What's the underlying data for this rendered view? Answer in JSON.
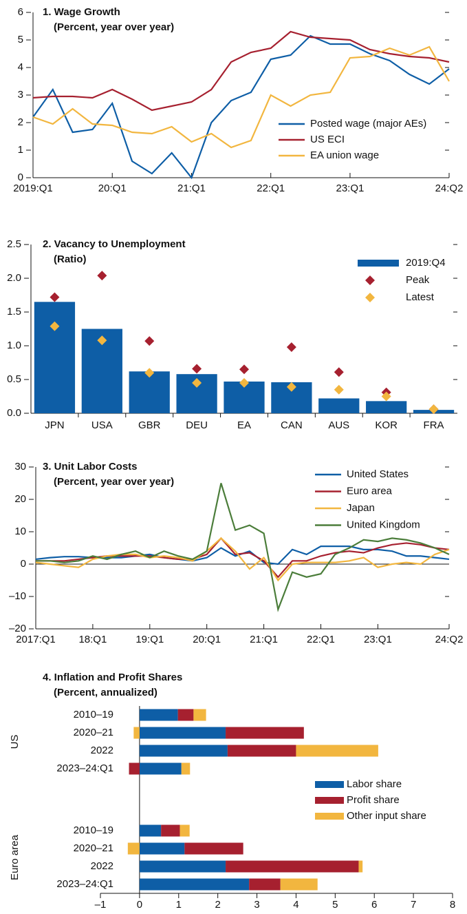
{
  "chart_data": [
    {
      "type": "line",
      "title": "1. Wage Growth",
      "subtitle": "(Percent, year over year)",
      "categories": [
        "2019:Q1",
        null,
        null,
        null,
        "20:Q1",
        null,
        null,
        null,
        "21:Q1",
        null,
        null,
        null,
        "22:Q1",
        null,
        null,
        null,
        "23:Q1",
        null,
        null,
        null,
        null,
        "24:Q2"
      ],
      "series": [
        {
          "name": "Posted wage (major AEs)",
          "color": "#0e5ea6",
          "values": [
            2.2,
            3.2,
            1.65,
            1.75,
            2.7,
            0.6,
            0.15,
            0.9,
            0,
            2.0,
            2.8,
            3.1,
            4.3,
            4.45,
            5.15,
            4.85,
            4.85,
            4.5,
            4.25,
            3.75,
            3.4,
            3.95
          ]
        },
        {
          "name": "US ECI",
          "color": "#a6202f",
          "values": [
            2.9,
            2.95,
            2.95,
            2.9,
            3.2,
            2.85,
            2.45,
            2.6,
            2.75,
            3.2,
            4.2,
            4.55,
            4.7,
            5.3,
            5.1,
            5.05,
            5.0,
            4.65,
            4.5,
            4.4,
            4.35,
            4.2
          ]
        },
        {
          "name": "EA union wage",
          "color": "#f2b63f",
          "values": [
            2.2,
            1.95,
            2.5,
            1.95,
            1.9,
            1.65,
            1.6,
            1.85,
            1.3,
            1.6,
            1.1,
            1.35,
            3.0,
            2.6,
            3.0,
            3.1,
            4.35,
            4.4,
            4.7,
            4.45,
            4.75,
            3.5
          ]
        }
      ],
      "ylim": [
        0,
        6
      ],
      "yticks": [
        0,
        1,
        2,
        3,
        4,
        5,
        6
      ]
    },
    {
      "type": "bar",
      "title": "2. Vacancy to Unemployment",
      "subtitle": "(Ratio)",
      "categories": [
        "JPN",
        "USA",
        "GBR",
        "DEU",
        "EA",
        "CAN",
        "AUS",
        "KOR",
        "FRA"
      ],
      "series": [
        {
          "name": "2019:Q4",
          "type": "bar",
          "color": "#0e5ea6",
          "values": [
            1.65,
            1.25,
            0.62,
            0.58,
            0.47,
            0.46,
            0.22,
            0.18,
            0.05
          ]
        },
        {
          "name": "Peak",
          "type": "scatter",
          "color": "#a6202f",
          "values": [
            1.72,
            2.04,
            1.07,
            0.66,
            0.65,
            0.98,
            0.61,
            0.31,
            0.06
          ]
        },
        {
          "name": "Latest",
          "type": "scatter",
          "color": "#f2b63f",
          "values": [
            1.29,
            1.08,
            0.6,
            0.45,
            0.45,
            0.39,
            0.35,
            0.25,
            0.06
          ]
        }
      ],
      "ylim": [
        0,
        2.5
      ],
      "yticks": [
        {
          "value": 0,
          "label": "0.0"
        },
        0.5,
        {
          "value": 1,
          "label": "1.0"
        },
        1.5,
        {
          "value": 2,
          "label": "2.0"
        },
        2.5
      ]
    },
    {
      "type": "line",
      "title": "3. Unit Labor Costs",
      "subtitle": "(Percent, year over year)",
      "categories": [
        "2017:Q1",
        null,
        null,
        null,
        "18:Q1",
        null,
        null,
        null,
        "19:Q1",
        null,
        null,
        null,
        "20:Q1",
        null,
        null,
        null,
        "21:Q1",
        null,
        null,
        null,
        "22:Q1",
        null,
        null,
        null,
        "23:Q1",
        null,
        null,
        null,
        null,
        "24:Q2"
      ],
      "series": [
        {
          "name": "United States",
          "color": "#0e5ea6",
          "values": [
            1.5,
            2,
            2.3,
            2.3,
            2,
            2,
            2,
            2.5,
            3,
            2,
            1.5,
            1,
            2,
            5,
            2.5,
            4,
            0.5,
            0,
            4.5,
            3,
            5.5,
            5.5,
            5.5,
            4.5,
            4.5,
            4,
            2.5,
            2.5,
            2,
            1.5
          ]
        },
        {
          "name": "Euro area",
          "color": "#a6202f",
          "values": [
            1,
            1,
            1,
            1.5,
            2,
            2.5,
            2.5,
            2.5,
            2.5,
            2,
            1.5,
            1.5,
            3,
            8,
            3,
            3.5,
            1,
            -4,
            1,
            1,
            2.5,
            3.5,
            4,
            3.5,
            5,
            6,
            6.5,
            6,
            5,
            4.5
          ]
        },
        {
          "name": "Japan",
          "color": "#f2b63f",
          "values": [
            0.5,
            0,
            -0.5,
            -1,
            1.5,
            2.5,
            3,
            3,
            2,
            2.5,
            2,
            1,
            4,
            8,
            4,
            -1.5,
            2,
            -5,
            0,
            0.5,
            0.5,
            0.5,
            1,
            2,
            -1,
            0,
            0.5,
            0,
            3,
            4.5
          ]
        },
        {
          "name": "United Kingdom",
          "color": "#4b7d3a",
          "values": [
            1,
            1,
            0.5,
            1,
            2.5,
            1.5,
            3,
            4,
            2,
            4,
            2.5,
            1.5,
            4,
            25,
            10.5,
            12,
            9.5,
            -14,
            -2.5,
            -4,
            -3,
            3,
            5,
            7.5,
            7,
            8,
            7.5,
            6.5,
            5,
            3
          ]
        }
      ],
      "ylim": [
        -20,
        30
      ],
      "yticks": [
        {
          "value": -20,
          "label": "–20"
        },
        {
          "value": -10,
          "label": "–10"
        },
        0,
        10,
        20,
        30
      ]
    },
    {
      "type": "hbar_stacked",
      "title": "4. Inflation and Profit Shares",
      "subtitle": "(Percent, annualized)",
      "groups": [
        {
          "name": "US",
          "categories": [
            "2010–19",
            "2020–21",
            "2022",
            "2023–24:Q1"
          ]
        },
        {
          "name": "Euro area",
          "categories": [
            "2010–19",
            "2020–21",
            "2022",
            "2023–24:Q1"
          ]
        }
      ],
      "series": [
        {
          "name": "Labor share",
          "color": "#0e5ea6",
          "values": [
            0.98,
            2.2,
            2.25,
            1.07,
            0.55,
            1.15,
            2.2,
            2.8
          ]
        },
        {
          "name": "Profit share",
          "color": "#a6202f",
          "values": [
            0.4,
            2.0,
            1.75,
            -0.27,
            0.48,
            1.5,
            3.4,
            0.8
          ]
        },
        {
          "name": "Other input share",
          "color": "#f2b63f",
          "values": [
            0.32,
            -0.15,
            2.1,
            0.22,
            0.25,
            -0.3,
            0.1,
            0.95
          ]
        }
      ],
      "xlim": [
        -1,
        8
      ],
      "xticks": [
        {
          "value": -1,
          "label": "–1"
        },
        0,
        1,
        2,
        3,
        4,
        5,
        6,
        7,
        8
      ]
    }
  ]
}
